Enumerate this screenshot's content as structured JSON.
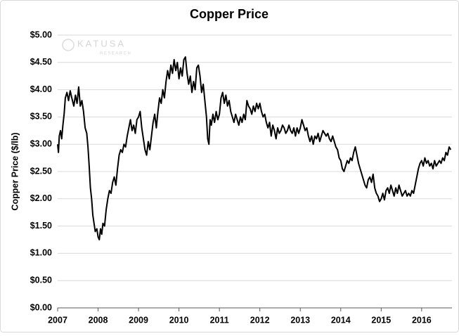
{
  "chart_data": {
    "type": "line",
    "title": "Copper Price",
    "y_label": "Copper Price ($/lb)",
    "watermark": "KATUSA",
    "watermark_sub": "RESEARCH",
    "color": "#000000",
    "grid": true,
    "xlim": [
      2007,
      2016.75
    ],
    "xticks": [
      2007,
      2008,
      2009,
      2010,
      2011,
      2012,
      2013,
      2014,
      2015,
      2016
    ],
    "ylim": [
      0,
      5
    ],
    "yticks": [
      {
        "value": 0,
        "label": "$0.00"
      },
      {
        "value": 0.5,
        "label": "$0.50"
      },
      {
        "value": 1,
        "label": "$1.00"
      },
      {
        "value": 1.5,
        "label": "$1.50"
      },
      {
        "value": 2,
        "label": "$2.00"
      },
      {
        "value": 2.5,
        "label": "$2.50"
      },
      {
        "value": 3,
        "label": "$3.00"
      },
      {
        "value": 3.5,
        "label": "$3.50"
      },
      {
        "value": 4,
        "label": "$4.00"
      },
      {
        "value": 4.5,
        "label": "$4.50"
      },
      {
        "value": 5,
        "label": "$5.00"
      }
    ],
    "x": [
      2007.0,
      2007.02,
      2007.04,
      2007.07,
      2007.1,
      2007.13,
      2007.16,
      2007.19,
      2007.23,
      2007.27,
      2007.31,
      2007.35,
      2007.4,
      2007.44,
      2007.48,
      2007.52,
      2007.56,
      2007.6,
      2007.64,
      2007.68,
      2007.72,
      2007.75,
      2007.78,
      2007.81,
      2007.84,
      2007.87,
      2007.9,
      2007.93,
      2007.97,
      2008.0,
      2008.03,
      2008.06,
      2008.09,
      2008.12,
      2008.16,
      2008.2,
      2008.24,
      2008.28,
      2008.32,
      2008.36,
      2008.4,
      2008.44,
      2008.48,
      2008.52,
      2008.56,
      2008.6,
      2008.64,
      2008.68,
      2008.72,
      2008.76,
      2008.8,
      2008.84,
      2008.88,
      2008.92,
      2008.96,
      2009.0,
      2009.04,
      2009.08,
      2009.12,
      2009.16,
      2009.2,
      2009.24,
      2009.28,
      2009.32,
      2009.36,
      2009.4,
      2009.44,
      2009.48,
      2009.52,
      2009.56,
      2009.6,
      2009.64,
      2009.68,
      2009.72,
      2009.76,
      2009.8,
      2009.84,
      2009.88,
      2009.92,
      2009.96,
      2010.0,
      2010.04,
      2010.08,
      2010.12,
      2010.16,
      2010.2,
      2010.24,
      2010.28,
      2010.32,
      2010.36,
      2010.4,
      2010.44,
      2010.48,
      2010.52,
      2010.56,
      2010.6,
      2010.64,
      2010.68,
      2010.71,
      2010.74,
      2010.77,
      2010.8,
      2010.84,
      2010.88,
      2010.92,
      2010.96,
      2011.0,
      2011.04,
      2011.08,
      2011.12,
      2011.16,
      2011.2,
      2011.24,
      2011.28,
      2011.32,
      2011.36,
      2011.4,
      2011.44,
      2011.48,
      2011.52,
      2011.56,
      2011.6,
      2011.64,
      2011.68,
      2011.72,
      2011.76,
      2011.8,
      2011.84,
      2011.88,
      2011.92,
      2011.96,
      2012.0,
      2012.04,
      2012.08,
      2012.12,
      2012.16,
      2012.2,
      2012.24,
      2012.28,
      2012.32,
      2012.36,
      2012.4,
      2012.44,
      2012.48,
      2012.52,
      2012.56,
      2012.6,
      2012.64,
      2012.68,
      2012.72,
      2012.76,
      2012.8,
      2012.84,
      2012.88,
      2012.92,
      2012.96,
      2013.0,
      2013.04,
      2013.08,
      2013.12,
      2013.16,
      2013.2,
      2013.24,
      2013.28,
      2013.32,
      2013.36,
      2013.4,
      2013.44,
      2013.48,
      2013.52,
      2013.56,
      2013.6,
      2013.64,
      2013.68,
      2013.72,
      2013.76,
      2013.8,
      2013.84,
      2013.88,
      2013.92,
      2013.96,
      2014.0,
      2014.04,
      2014.08,
      2014.12,
      2014.16,
      2014.2,
      2014.24,
      2014.28,
      2014.32,
      2014.36,
      2014.4,
      2014.44,
      2014.48,
      2014.52,
      2014.56,
      2014.6,
      2014.64,
      2014.68,
      2014.72,
      2014.76,
      2014.8,
      2014.84,
      2014.88,
      2014.92,
      2014.96,
      2015.0,
      2015.04,
      2015.08,
      2015.12,
      2015.16,
      2015.2,
      2015.24,
      2015.28,
      2015.32,
      2015.36,
      2015.4,
      2015.44,
      2015.48,
      2015.52,
      2015.56,
      2015.6,
      2015.64,
      2015.68,
      2015.72,
      2015.76,
      2015.8,
      2015.84,
      2015.88,
      2015.92,
      2015.96,
      2016.0,
      2016.04,
      2016.08,
      2016.12,
      2016.16,
      2016.2,
      2016.24,
      2016.28,
      2016.32,
      2016.36,
      2016.4,
      2016.44,
      2016.48,
      2016.52,
      2016.56,
      2016.6,
      2016.64,
      2016.68,
      2016.72
    ],
    "values": [
      3.0,
      2.85,
      3.15,
      3.25,
      3.1,
      3.35,
      3.55,
      3.85,
      3.95,
      3.8,
      3.98,
      3.85,
      3.7,
      3.9,
      3.75,
      4.05,
      3.7,
      3.8,
      3.6,
      3.3,
      3.2,
      2.95,
      2.6,
      2.2,
      2.0,
      1.7,
      1.55,
      1.4,
      1.45,
      1.3,
      1.25,
      1.45,
      1.35,
      1.55,
      1.5,
      1.8,
      2.0,
      2.15,
      2.1,
      2.3,
      2.4,
      2.25,
      2.55,
      2.8,
      2.9,
      2.85,
      3.0,
      2.95,
      3.15,
      3.3,
      3.45,
      3.25,
      3.35,
      3.2,
      3.45,
      3.5,
      3.6,
      3.3,
      3.1,
      2.9,
      2.8,
      3.05,
      2.9,
      3.15,
      3.4,
      3.55,
      3.3,
      3.6,
      3.85,
      3.75,
      4.0,
      3.85,
      4.15,
      4.35,
      4.2,
      4.45,
      4.3,
      4.55,
      4.35,
      4.5,
      4.2,
      4.4,
      4.25,
      4.55,
      4.6,
      4.3,
      4.1,
      4.25,
      3.95,
      4.15,
      4.0,
      4.4,
      4.45,
      4.25,
      3.95,
      4.1,
      3.8,
      3.5,
      3.1,
      3.0,
      3.45,
      3.35,
      3.55,
      3.4,
      3.6,
      3.45,
      3.55,
      3.85,
      3.95,
      3.75,
      3.9,
      3.7,
      3.8,
      3.6,
      3.5,
      3.4,
      3.55,
      3.45,
      3.35,
      3.5,
      3.4,
      3.55,
      3.45,
      3.8,
      3.7,
      3.65,
      3.55,
      3.7,
      3.6,
      3.75,
      3.65,
      3.75,
      3.6,
      3.5,
      3.55,
      3.4,
      3.3,
      3.4,
      3.15,
      3.35,
      3.25,
      3.1,
      3.3,
      3.2,
      3.25,
      3.35,
      3.3,
      3.2,
      3.25,
      3.35,
      3.25,
      3.2,
      3.3,
      3.15,
      3.3,
      3.2,
      3.3,
      3.45,
      3.35,
      3.25,
      3.3,
      3.15,
      3.05,
      3.15,
      3.0,
      3.15,
      3.1,
      3.2,
      3.05,
      3.15,
      3.25,
      3.2,
      3.15,
      3.2,
      3.1,
      3.05,
      3.15,
      3.05,
      2.95,
      2.9,
      2.75,
      2.7,
      2.55,
      2.5,
      2.6,
      2.7,
      2.65,
      2.75,
      2.7,
      2.85,
      2.95,
      2.8,
      2.65,
      2.55,
      2.45,
      2.35,
      2.25,
      2.2,
      2.35,
      2.4,
      2.3,
      2.45,
      2.2,
      2.1,
      2.05,
      1.95,
      2.0,
      2.1,
      1.98,
      2.15,
      2.2,
      2.1,
      2.25,
      2.15,
      2.05,
      2.2,
      2.1,
      2.25,
      2.15,
      2.05,
      2.1,
      2.15,
      2.05,
      2.1,
      2.05,
      2.15,
      2.1,
      2.25,
      2.4,
      2.55,
      2.65,
      2.7,
      2.6,
      2.75,
      2.65,
      2.7,
      2.6,
      2.65,
      2.55,
      2.7,
      2.6,
      2.65,
      2.7,
      2.65,
      2.75,
      2.7,
      2.85,
      2.8,
      2.95,
      2.9
    ]
  }
}
